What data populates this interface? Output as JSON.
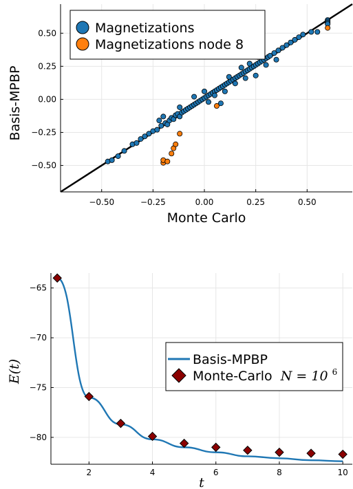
{
  "chart_data": [
    {
      "type": "scatter",
      "xlabel": "Monte Carlo",
      "ylabel": "Basis-MPBP",
      "xlim": [
        -0.7,
        0.72
      ],
      "ylim": [
        -0.7,
        0.72
      ],
      "xticks": [
        "−0.50",
        "−0.25",
        "0.00",
        "0.25",
        "0.50"
      ],
      "yticks": [
        "−0.50",
        "−0.25",
        "0.00",
        "0.25",
        "0.50"
      ],
      "tick_values": [
        -0.5,
        -0.25,
        0.0,
        0.25,
        0.5
      ],
      "grid": true,
      "legend_position": "top-left",
      "reference_line": {
        "from": [
          -0.7,
          -0.7
        ],
        "to": [
          0.72,
          0.72
        ],
        "color": "#000000"
      },
      "series": [
        {
          "name": "Magnetizations",
          "color": "#1f77b4",
          "points": [
            [
              -0.47,
              -0.47
            ],
            [
              -0.45,
              -0.46
            ],
            [
              -0.42,
              -0.43
            ],
            [
              -0.39,
              -0.39
            ],
            [
              -0.35,
              -0.34
            ],
            [
              -0.33,
              -0.33
            ],
            [
              -0.31,
              -0.3
            ],
            [
              -0.29,
              -0.28
            ],
            [
              -0.27,
              -0.26
            ],
            [
              -0.25,
              -0.24
            ],
            [
              -0.23,
              -0.23
            ],
            [
              -0.21,
              -0.2
            ],
            [
              -0.2,
              -0.13
            ],
            [
              -0.19,
              -0.18
            ],
            [
              -0.18,
              -0.19
            ],
            [
              -0.17,
              -0.16
            ],
            [
              -0.16,
              -0.14
            ],
            [
              -0.15,
              -0.15
            ],
            [
              -0.14,
              -0.12
            ],
            [
              -0.13,
              -0.11
            ],
            [
              -0.12,
              -0.13
            ],
            [
              -0.11,
              -0.1
            ],
            [
              -0.1,
              -0.09
            ],
            [
              -0.09,
              -0.08
            ],
            [
              -0.08,
              -0.07
            ],
            [
              -0.07,
              -0.06
            ],
            [
              -0.06,
              -0.05
            ],
            [
              -0.05,
              -0.04
            ],
            [
              -0.04,
              -0.03
            ],
            [
              -0.03,
              -0.02
            ],
            [
              -0.02,
              -0.01
            ],
            [
              -0.01,
              0.0
            ],
            [
              0.0,
              0.01
            ],
            [
              0.01,
              0.02
            ],
            [
              0.02,
              0.03
            ],
            [
              0.03,
              0.04
            ],
            [
              0.04,
              0.05
            ],
            [
              0.05,
              0.06
            ],
            [
              0.06,
              0.07
            ],
            [
              0.07,
              0.08
            ],
            [
              0.08,
              0.09
            ],
            [
              0.09,
              0.1
            ],
            [
              0.1,
              0.11
            ],
            [
              0.11,
              0.12
            ],
            [
              0.12,
              0.13
            ],
            [
              0.13,
              0.14
            ],
            [
              0.14,
              0.15
            ],
            [
              0.15,
              0.16
            ],
            [
              0.16,
              0.17
            ],
            [
              0.17,
              0.18
            ],
            [
              0.18,
              0.19
            ],
            [
              0.19,
              0.2
            ],
            [
              0.2,
              0.21
            ],
            [
              0.21,
              0.22
            ],
            [
              0.22,
              0.23
            ],
            [
              0.23,
              0.24
            ],
            [
              0.24,
              0.25
            ],
            [
              0.25,
              0.26
            ],
            [
              0.26,
              0.27
            ],
            [
              0.27,
              0.28
            ],
            [
              0.28,
              0.29
            ],
            [
              0.29,
              0.3
            ],
            [
              0.3,
              0.31
            ],
            [
              0.31,
              0.32
            ],
            [
              0.32,
              0.33
            ],
            [
              0.34,
              0.35
            ],
            [
              0.36,
              0.37
            ],
            [
              0.38,
              0.39
            ],
            [
              0.4,
              0.41
            ],
            [
              0.42,
              0.43
            ],
            [
              0.44,
              0.45
            ],
            [
              0.46,
              0.47
            ],
            [
              0.48,
              0.49
            ],
            [
              0.52,
              0.51
            ],
            [
              0.55,
              0.51
            ],
            [
              0.6,
              0.6
            ],
            [
              0.6,
              0.59
            ],
            [
              0.6,
              0.58
            ],
            [
              0.6,
              0.57
            ],
            [
              0.05,
              0.03
            ],
            [
              0.1,
              0.06
            ],
            [
              0.15,
              0.12
            ],
            [
              0.2,
              0.16
            ],
            [
              0.25,
              0.18
            ],
            [
              0.3,
              0.26
            ],
            [
              -0.05,
              0.02
            ],
            [
              0.0,
              0.06
            ],
            [
              0.08,
              -0.03
            ],
            [
              0.02,
              -0.02
            ],
            [
              0.18,
              0.24
            ],
            [
              0.22,
              0.27
            ],
            [
              0.12,
              0.17
            ],
            [
              -0.12,
              -0.06
            ],
            [
              -0.22,
              -0.16
            ],
            [
              0.35,
              0.3
            ],
            [
              0.26,
              0.32
            ]
          ]
        },
        {
          "name": "Magnetizations node 8",
          "color": "#ff7f0e",
          "points": [
            [
              -0.2,
              -0.48
            ],
            [
              -0.2,
              -0.46
            ],
            [
              -0.18,
              -0.47
            ],
            [
              -0.16,
              -0.41
            ],
            [
              -0.15,
              -0.37
            ],
            [
              -0.14,
              -0.34
            ],
            [
              -0.12,
              -0.26
            ],
            [
              0.06,
              -0.05
            ],
            [
              0.6,
              0.54
            ]
          ]
        }
      ]
    },
    {
      "type": "line",
      "xlabel": "t",
      "ylabel": "E(t)",
      "xlim": [
        0.8,
        10.3
      ],
      "ylim": [
        -82.7,
        -63.5
      ],
      "xticks": [
        "2",
        "4",
        "6",
        "8",
        "10"
      ],
      "xtick_values": [
        2,
        4,
        6,
        8,
        10
      ],
      "yticks": [
        "−65",
        "−70",
        "−75",
        "−80"
      ],
      "ytick_values": [
        -65,
        -70,
        -75,
        -80
      ],
      "grid": true,
      "legend_position": "right",
      "series": [
        {
          "name": "Basis-MPBP",
          "style": "line",
          "color": "#1f77b4",
          "x": [
            1,
            2,
            3,
            4,
            5,
            6,
            7,
            8,
            9,
            10
          ],
          "y": [
            -64.0,
            -76.0,
            -78.7,
            -80.2,
            -81.0,
            -81.5,
            -81.9,
            -82.1,
            -82.3,
            -82.4
          ]
        },
        {
          "name": "Monte-Carlo",
          "name_math": "N = 10",
          "name_math_exp": "6",
          "style": "marker-diamond",
          "color": "#8b0000",
          "x": [
            1,
            2,
            3,
            4,
            5,
            6,
            7,
            8,
            9,
            10
          ],
          "y": [
            -64.0,
            -75.9,
            -78.6,
            -79.9,
            -80.6,
            -81.0,
            -81.3,
            -81.5,
            -81.6,
            -81.7
          ]
        }
      ]
    }
  ]
}
